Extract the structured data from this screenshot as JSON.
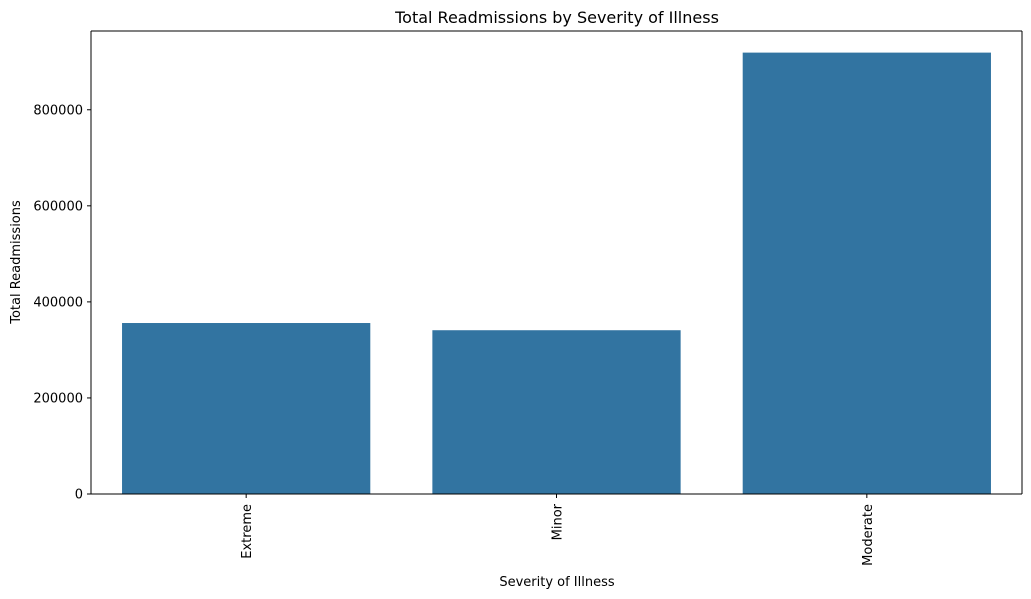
{
  "chart_data": {
    "type": "bar",
    "title": "Total Readmissions by Severity of Illness",
    "xlabel": "Severity of Illness",
    "ylabel": "Total Readmissions",
    "categories": [
      "Extreme",
      "Minor",
      "Moderate"
    ],
    "values": [
      356000,
      341000,
      919000
    ],
    "ylim": [
      0,
      964000
    ],
    "yticks": [
      0,
      200000,
      400000,
      600000,
      800000
    ],
    "ytick_labels": [
      "0",
      "200000",
      "400000",
      "600000",
      "800000"
    ],
    "xtick_rotation": "vertical",
    "bar_color": "#3274a1",
    "grid": false,
    "legend": "none"
  }
}
